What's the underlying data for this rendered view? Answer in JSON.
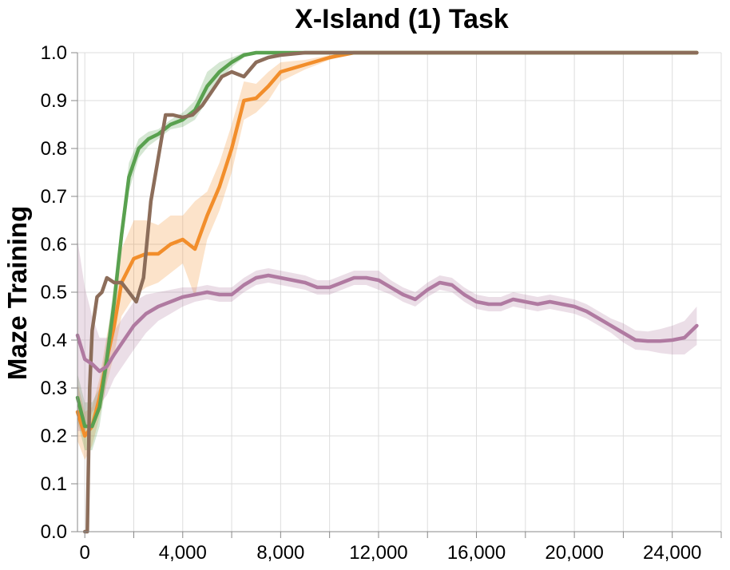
{
  "chart_data": {
    "type": "line",
    "title": "X-Island (1) Task",
    "xlabel": "",
    "ylabel": "Maze Training",
    "xlim": [
      -300,
      26000
    ],
    "ylim": [
      0,
      1
    ],
    "x_ticks": [
      0,
      4000,
      8000,
      12000,
      16000,
      20000,
      24000
    ],
    "x_tick_labels": [
      "0",
      "4,000",
      "8,000",
      "12,000",
      "16,000",
      "20,000",
      "24,000"
    ],
    "y_ticks": [
      0,
      0.1,
      0.2,
      0.3,
      0.4,
      0.5,
      0.6,
      0.7,
      0.8,
      0.9,
      1.0
    ],
    "y_tick_labels": [
      "0.0",
      "0.1",
      "0.2",
      "0.3",
      "0.4",
      "0.5",
      "0.6",
      "0.7",
      "0.8",
      "0.9",
      "1.0"
    ],
    "grid": true,
    "legend": "none",
    "series": [
      {
        "color": "#f28e2b",
        "x": [
          -300,
          0,
          300,
          600,
          900,
          1200,
          1500,
          2000,
          2500,
          3000,
          3500,
          4000,
          4500,
          5000,
          5500,
          6000,
          6500,
          7000,
          7500,
          8000,
          9000,
          10000,
          11000,
          12000,
          16000,
          20000,
          25000
        ],
        "y": [
          0.25,
          0.2,
          0.22,
          0.28,
          0.36,
          0.43,
          0.52,
          0.57,
          0.58,
          0.58,
          0.6,
          0.61,
          0.59,
          0.66,
          0.72,
          0.8,
          0.9,
          0.905,
          0.93,
          0.96,
          0.975,
          0.99,
          1.0,
          1.0,
          1.0,
          1.0,
          1.0
        ],
        "band": [
          0.06,
          0.05,
          0.04,
          0.04,
          0.05,
          0.06,
          0.07,
          0.08,
          0.07,
          0.06,
          0.06,
          0.05,
          0.1,
          0.05,
          0.05,
          0.05,
          0.04,
          0.03,
          0.03,
          0.02,
          0.01,
          0.005,
          0,
          0,
          0,
          0,
          0
        ]
      },
      {
        "color": "#59a14f",
        "x": [
          -300,
          0,
          300,
          600,
          900,
          1200,
          1500,
          1800,
          2200,
          2600,
          3000,
          3500,
          4000,
          4500,
          5000,
          5500,
          6000,
          6500,
          7000,
          8000,
          9000,
          10000,
          12000,
          16000,
          20000,
          25000
        ],
        "y": [
          0.28,
          0.22,
          0.22,
          0.26,
          0.36,
          0.48,
          0.62,
          0.74,
          0.8,
          0.82,
          0.83,
          0.85,
          0.86,
          0.88,
          0.93,
          0.96,
          0.98,
          0.995,
          1.0,
          1.0,
          1.0,
          1.0,
          1.0,
          1.0,
          1.0,
          1.0
        ],
        "band": [
          0.05,
          0.05,
          0.05,
          0.04,
          0.04,
          0.04,
          0.03,
          0.03,
          0.02,
          0.015,
          0.01,
          0.01,
          0.015,
          0.02,
          0.03,
          0.02,
          0.01,
          0.005,
          0,
          0,
          0,
          0,
          0,
          0,
          0,
          0
        ]
      },
      {
        "color": "#8c6d5a",
        "x": [
          0,
          100,
          200,
          300,
          500,
          700,
          900,
          1200,
          1500,
          1800,
          2100,
          2400,
          2700,
          3000,
          3300,
          3600,
          4000,
          4400,
          4800,
          5200,
          5600,
          6000,
          6500,
          7000,
          7500,
          8000,
          9000,
          10000,
          12000,
          16000,
          20000,
          25000
        ],
        "y": [
          0.0,
          0.0,
          0.3,
          0.42,
          0.49,
          0.5,
          0.53,
          0.52,
          0.52,
          0.5,
          0.48,
          0.53,
          0.69,
          0.78,
          0.87,
          0.87,
          0.865,
          0.87,
          0.89,
          0.92,
          0.95,
          0.96,
          0.95,
          0.98,
          0.99,
          0.995,
          1.0,
          1.0,
          1.0,
          1.0,
          1.0,
          1.0
        ],
        "band": [
          0,
          0,
          0,
          0,
          0,
          0,
          0,
          0,
          0,
          0,
          0,
          0,
          0,
          0,
          0,
          0,
          0,
          0,
          0,
          0,
          0,
          0,
          0,
          0,
          0,
          0,
          0,
          0,
          0,
          0,
          0,
          0
        ]
      },
      {
        "color": "#b07aa1",
        "x": [
          -300,
          0,
          300,
          600,
          900,
          1200,
          1600,
          2000,
          2500,
          3000,
          3500,
          4000,
          4500,
          5000,
          5500,
          6000,
          6500,
          7000,
          7500,
          8000,
          8500,
          9000,
          9500,
          10000,
          10500,
          11000,
          11500,
          12000,
          12500,
          13000,
          13500,
          14000,
          14500,
          15000,
          15500,
          16000,
          16500,
          17000,
          17500,
          18000,
          18500,
          19000,
          19500,
          20000,
          20500,
          21000,
          21500,
          22000,
          22500,
          23000,
          23500,
          24000,
          24500,
          25000
        ],
        "y": [
          0.41,
          0.36,
          0.35,
          0.335,
          0.345,
          0.37,
          0.4,
          0.43,
          0.455,
          0.47,
          0.48,
          0.49,
          0.495,
          0.5,
          0.495,
          0.495,
          0.515,
          0.53,
          0.535,
          0.53,
          0.525,
          0.52,
          0.51,
          0.51,
          0.52,
          0.53,
          0.53,
          0.525,
          0.51,
          0.495,
          0.485,
          0.505,
          0.52,
          0.515,
          0.495,
          0.48,
          0.475,
          0.475,
          0.485,
          0.48,
          0.475,
          0.48,
          0.475,
          0.47,
          0.46,
          0.445,
          0.43,
          0.415,
          0.4,
          0.398,
          0.398,
          0.4,
          0.405,
          0.43
        ],
        "band": [
          0.2,
          0.15,
          0.1,
          0.07,
          0.06,
          0.05,
          0.05,
          0.05,
          0.04,
          0.03,
          0.025,
          0.02,
          0.015,
          0.015,
          0.015,
          0.015,
          0.015,
          0.015,
          0.015,
          0.015,
          0.015,
          0.015,
          0.015,
          0.015,
          0.015,
          0.015,
          0.015,
          0.02,
          0.015,
          0.015,
          0.015,
          0.015,
          0.015,
          0.015,
          0.015,
          0.015,
          0.015,
          0.015,
          0.015,
          0.015,
          0.015,
          0.015,
          0.015,
          0.015,
          0.015,
          0.015,
          0.015,
          0.02,
          0.02,
          0.02,
          0.025,
          0.03,
          0.035,
          0.04
        ]
      }
    ]
  }
}
